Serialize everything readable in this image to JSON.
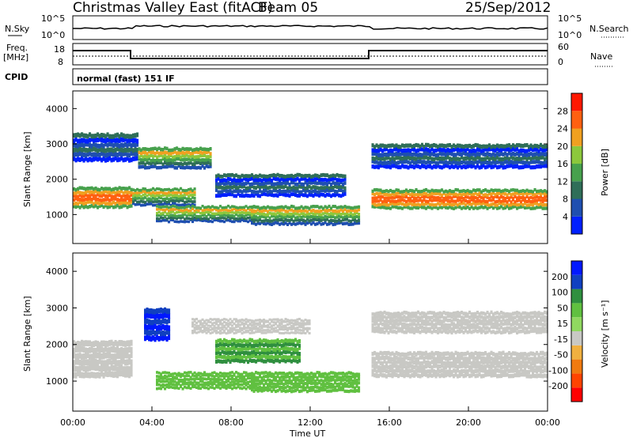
{
  "header": {
    "station": "Christmas Valley East (fitACF)",
    "beam": "Beam 05",
    "date": "25/Sep/2012"
  },
  "panels": {
    "noise_left": "N.Sky",
    "noise_right": "N.Search",
    "noise_ticks": [
      "10^5",
      "10^0"
    ],
    "freq_left": [
      "Freq.",
      "[MHz]"
    ],
    "freq_ticks": [
      "18",
      "8"
    ],
    "nave_ticks": [
      "60",
      "0"
    ],
    "nave_label": "Nave",
    "cpid_label": "CPID",
    "cpid_value": "normal (fast) 151 IF"
  },
  "colors": {
    "power": [
      "#0020ff",
      "#1f4fb0",
      "#2f6e58",
      "#47a14d",
      "#8cc83c",
      "#f0a020",
      "#ff6010",
      "#ff1800"
    ],
    "velocity": [
      "#ff0000",
      "#ff4400",
      "#f07a10",
      "#f0b040",
      "#c8c8c4",
      "#90d860",
      "#60c040",
      "#2f8f3f",
      "#1040c0",
      "#0018ff"
    ],
    "background": "#ffffff"
  },
  "chart_data": [
    {
      "type": "heatmap",
      "name": "Power",
      "ylabel": "Slant Range [km]",
      "y_ticks": [
        1000,
        2000,
        3000,
        4000
      ],
      "ylim": [
        180,
        4500
      ],
      "colorbar_label": "Power [dB]",
      "colorbar_ticks": [
        4,
        8,
        12,
        16,
        20,
        24,
        28
      ],
      "colorbar_range": [
        0,
        32
      ],
      "bands": [
        {
          "t0": 0.0,
          "t1": 3.0,
          "r0": 1180,
          "r1": 1780,
          "level": "high"
        },
        {
          "t0": 3.0,
          "t1": 6.2,
          "r0": 1250,
          "r1": 1750,
          "level": "mid"
        },
        {
          "t0": 15.1,
          "t1": 24.0,
          "r0": 1150,
          "r1": 1720,
          "level": "high"
        },
        {
          "t0": 4.2,
          "t1": 9.2,
          "r0": 780,
          "r1": 1250,
          "level": "mid"
        },
        {
          "t0": 9.0,
          "t1": 14.5,
          "r0": 700,
          "r1": 1250,
          "level": "mid"
        },
        {
          "t0": 7.2,
          "t1": 13.8,
          "r0": 1500,
          "r1": 2150,
          "level": "low"
        },
        {
          "t0": 0.0,
          "t1": 3.3,
          "r0": 2500,
          "r1": 3300,
          "level": "low"
        },
        {
          "t0": 3.3,
          "t1": 7.0,
          "r0": 2300,
          "r1": 2900,
          "level": "mid"
        },
        {
          "t0": 15.1,
          "t1": 24.0,
          "r0": 2300,
          "r1": 3000,
          "level": "low"
        }
      ]
    },
    {
      "type": "heatmap",
      "name": "Velocity",
      "ylabel": "Slant Range [km]",
      "y_ticks": [
        1000,
        2000,
        3000,
        4000
      ],
      "ylim": [
        180,
        4500
      ],
      "colorbar_label": "Velocity [m s⁻¹]",
      "colorbar_ticks": [
        200,
        100,
        50,
        15,
        -15,
        -50,
        -100,
        -200
      ],
      "bands": [
        {
          "t0": 0.0,
          "t1": 3.0,
          "r0": 1100,
          "r1": 2100,
          "v": "ground"
        },
        {
          "t0": 15.1,
          "t1": 24.0,
          "r0": 1100,
          "r1": 1800,
          "v": "ground"
        },
        {
          "t0": 4.2,
          "t1": 9.2,
          "r0": 780,
          "r1": 1250,
          "v": "15"
        },
        {
          "t0": 9.0,
          "t1": 14.5,
          "r0": 700,
          "r1": 1250,
          "v": "50"
        },
        {
          "t0": 7.2,
          "t1": 11.5,
          "r0": 1500,
          "r1": 2150,
          "v": "100"
        },
        {
          "t0": 3.6,
          "t1": 4.9,
          "r0": 2100,
          "r1": 3000,
          "v": "200"
        },
        {
          "t0": 6.0,
          "t1": 12.0,
          "r0": 2300,
          "r1": 2700,
          "v": "ground"
        },
        {
          "t0": 15.1,
          "t1": 24.0,
          "r0": 2300,
          "r1": 2900,
          "v": "ground"
        }
      ]
    }
  ],
  "time_axis": {
    "label": "Time UT",
    "ticks": [
      "00:00",
      "04:00",
      "08:00",
      "12:00",
      "16:00",
      "20:00",
      "00:00"
    ]
  }
}
